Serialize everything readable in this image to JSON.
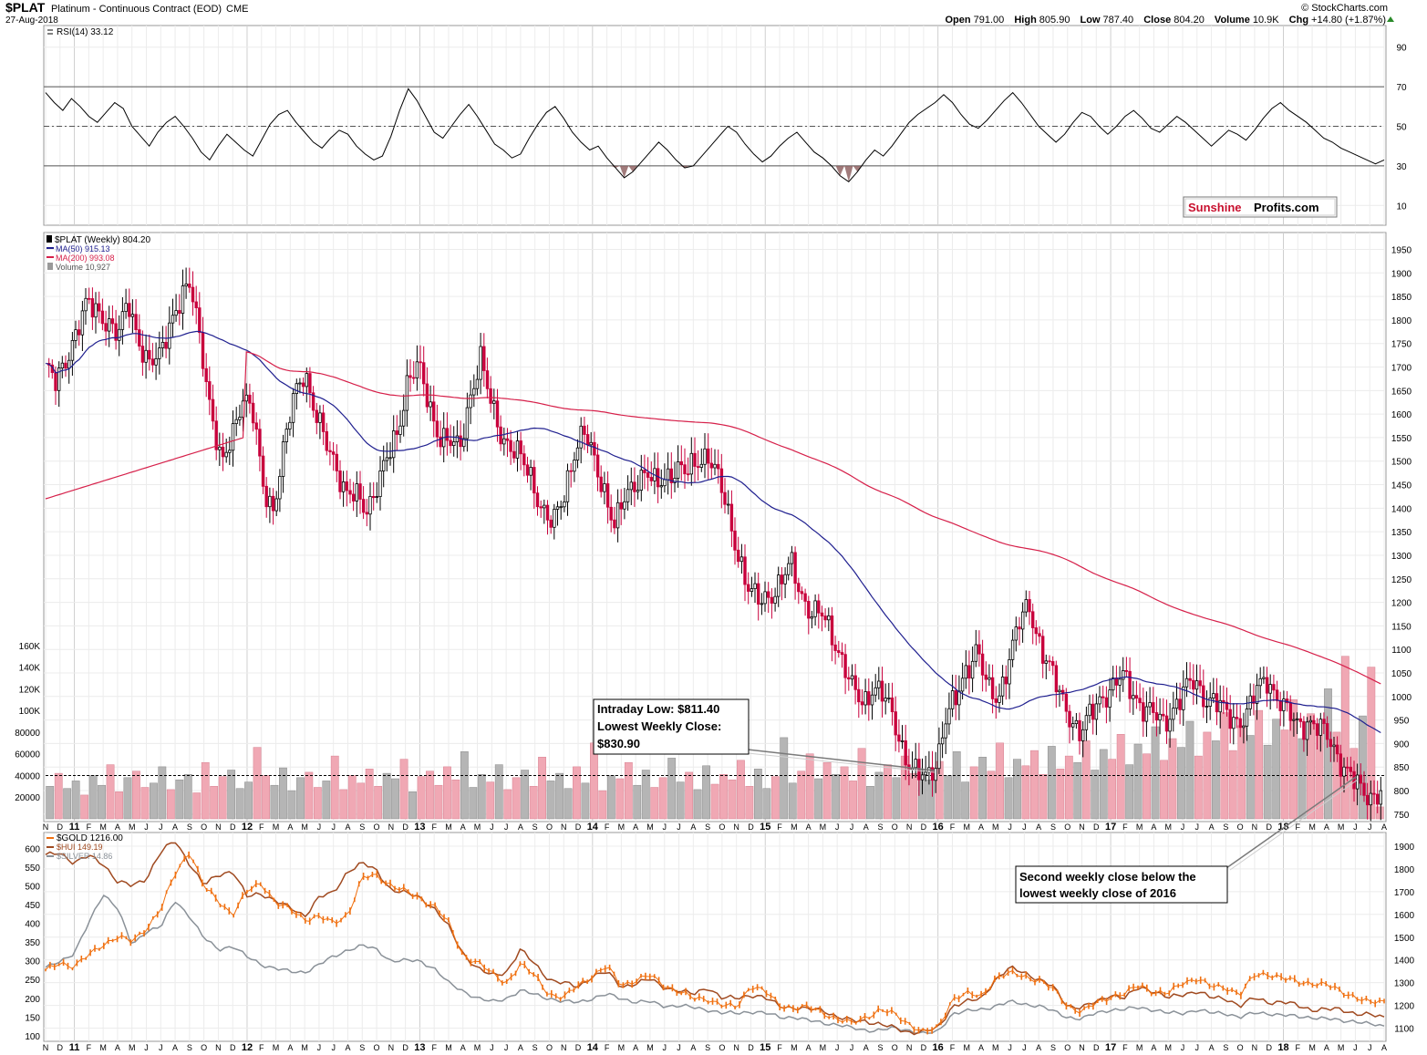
{
  "header": {
    "symbol": "$PLAT",
    "name": "Platinum - Continuous Contract (EOD)",
    "exchange": "CME",
    "date": "27-Aug-2018",
    "open_label": "Open",
    "open": "791.00",
    "high_label": "High",
    "high": "805.90",
    "low_label": "Low",
    "low": "787.40",
    "close_label": "Close",
    "close": "804.20",
    "volume_label": "Volume",
    "volume": "10.9K",
    "chg_label": "Chg",
    "chg": "+14.80 (+1.87%)",
    "credit": "© StockCharts.com"
  },
  "logo": {
    "part1": "Sunshine",
    "part2": "Profits.com",
    "color1": "#c8102e"
  },
  "colors": {
    "ma50": "#1f1f8f",
    "ma200": "#d6204a",
    "up": "#000000",
    "down": "#c8003c",
    "vol_up": "#b5b5b5",
    "vol_down": "#f0a8b4",
    "gold": "#f07010",
    "hui": "#a04a20",
    "silver": "#8a9198"
  },
  "chart_data": [
    {
      "panel": "rsi",
      "type": "line",
      "label": "RSI(14) 33.12",
      "y_ticks": [
        90,
        70,
        50,
        30,
        10
      ],
      "ylim": [
        0,
        100
      ],
      "reference_lines": [
        70,
        50,
        30
      ],
      "values": [
        67,
        62,
        58,
        64,
        60,
        55,
        52,
        57,
        62,
        59,
        50,
        45,
        40,
        47,
        52,
        55,
        50,
        44,
        37,
        33,
        40,
        46,
        42,
        38,
        35,
        43,
        51,
        56,
        58,
        52,
        47,
        42,
        39,
        44,
        48,
        46,
        40,
        36,
        33,
        35,
        45,
        58,
        69,
        63,
        55,
        47,
        44,
        50,
        56,
        61,
        55,
        48,
        41,
        38,
        34,
        36,
        44,
        51,
        57,
        60,
        54,
        47,
        42,
        38,
        40,
        34,
        29,
        24,
        27,
        32,
        37,
        42,
        38,
        33,
        29,
        30,
        35,
        40,
        45,
        50,
        47,
        41,
        36,
        32,
        35,
        40,
        44,
        47,
        42,
        37,
        34,
        30,
        25,
        22,
        27,
        33,
        38,
        35,
        40,
        46,
        52,
        56,
        59,
        62,
        66,
        62,
        56,
        51,
        49,
        53,
        58,
        63,
        67,
        62,
        56,
        50,
        46,
        42,
        46,
        52,
        57,
        55,
        50,
        46,
        50,
        55,
        58,
        54,
        49,
        47,
        51,
        55,
        52,
        48,
        44,
        40,
        44,
        48,
        46,
        43,
        48,
        54,
        59,
        62,
        58,
        55,
        52,
        48,
        44,
        42,
        39,
        37,
        35,
        33,
        31,
        33
      ]
    },
    {
      "panel": "price",
      "type": "candlestick",
      "label": "$PLAT (Weekly) 804.20",
      "legend": [
        {
          "name": "MA(50) 915.13",
          "color": "#1f1f8f"
        },
        {
          "name": "MA(200) 993.08",
          "color": "#d6204a"
        },
        {
          "name": "Volume 10,927",
          "color": "#9a9a9a"
        }
      ],
      "y_ticks": [
        1950,
        1900,
        1850,
        1800,
        1750,
        1700,
        1650,
        1600,
        1550,
        1500,
        1450,
        1400,
        1350,
        1300,
        1250,
        1200,
        1150,
        1100,
        1050,
        1000,
        950,
        900,
        850,
        800,
        750
      ],
      "ylim": [
        740,
        1980
      ],
      "x_labels": [
        "N",
        "D",
        "11",
        "F",
        "M",
        "A",
        "M",
        "J",
        "J",
        "A",
        "S",
        "O",
        "N",
        "D",
        "12",
        "F",
        "M",
        "A",
        "M",
        "J",
        "J",
        "A",
        "S",
        "O",
        "N",
        "D",
        "13",
        "F",
        "M",
        "A",
        "M",
        "J",
        "J",
        "A",
        "S",
        "O",
        "N",
        "D",
        "14",
        "F",
        "M",
        "A",
        "M",
        "J",
        "J",
        "A",
        "S",
        "O",
        "N",
        "D",
        "15",
        "F",
        "M",
        "A",
        "M",
        "J",
        "J",
        "A",
        "S",
        "O",
        "N",
        "D",
        "16",
        "F",
        "M",
        "A",
        "M",
        "J",
        "J",
        "A",
        "S",
        "O",
        "N",
        "D",
        "17",
        "F",
        "M",
        "A",
        "M",
        "J",
        "J",
        "A",
        "S",
        "O",
        "N",
        "D",
        "18",
        "F",
        "M",
        "A",
        "M",
        "J",
        "J",
        "A"
      ],
      "close_path": [
        1700,
        1660,
        1720,
        1780,
        1830,
        1820,
        1800,
        1760,
        1840,
        1760,
        1700,
        1720,
        1800,
        1840,
        1870,
        1760,
        1600,
        1480,
        1560,
        1640,
        1600,
        1450,
        1400,
        1520,
        1640,
        1700,
        1600,
        1540,
        1500,
        1430,
        1420,
        1400,
        1450,
        1500,
        1560,
        1680,
        1700,
        1620,
        1560,
        1540,
        1520,
        1640,
        1720,
        1620,
        1560,
        1530,
        1500,
        1460,
        1400,
        1360,
        1420,
        1520,
        1560,
        1500,
        1440,
        1360,
        1420,
        1460,
        1480,
        1440,
        1470,
        1490,
        1470,
        1500,
        1520,
        1460,
        1380,
        1300,
        1220,
        1200,
        1220,
        1240,
        1280,
        1220,
        1180,
        1170,
        1130,
        1080,
        1010,
        980,
        1030,
        1000,
        940,
        880,
        840,
        820,
        860,
        960,
        990,
        1060,
        1110,
        1010,
        990,
        1080,
        1150,
        1190,
        1120,
        1060,
        1000,
        960,
        920,
        960,
        1000,
        1020,
        1040,
        1010,
        980,
        960,
        940,
        980,
        1010,
        1030,
        1000,
        990,
        960,
        950,
        960,
        1010,
        1040,
        1000,
        960,
        940,
        950,
        930,
        910,
        870,
        830,
        800,
        790,
        800
      ]
    },
    {
      "panel": "volume",
      "type": "bar",
      "y_ticks": [
        "160K",
        "140K",
        "120K",
        "100K",
        "80000",
        "60000",
        "40000",
        "20000"
      ],
      "y_tick_values": [
        160000,
        140000,
        120000,
        100000,
        80000,
        60000,
        40000,
        20000
      ],
      "ylim": [
        0,
        175000
      ],
      "reference_value": 40000,
      "values_k": [
        30,
        42,
        28,
        35,
        22,
        40,
        31,
        50,
        25,
        38,
        44,
        29,
        33,
        48,
        27,
        36,
        41,
        24,
        52,
        30,
        39,
        45,
        28,
        34,
        66,
        40,
        31,
        47,
        26,
        38,
        43,
        29,
        35,
        58,
        27,
        40,
        33,
        46,
        30,
        42,
        37,
        55,
        25,
        39,
        44,
        31,
        48,
        36,
        62,
        29,
        41,
        34,
        50,
        27,
        38,
        45,
        30,
        57,
        35,
        42,
        28,
        48,
        33,
        70,
        26,
        40,
        37,
        52,
        31,
        45,
        29,
        38,
        56,
        34,
        43,
        27,
        49,
        32,
        41,
        36,
        54,
        30,
        46,
        28,
        39,
        75,
        33,
        44,
        60,
        37,
        52,
        41,
        48,
        35,
        65,
        30,
        43,
        50,
        38,
        58,
        42,
        46,
        36,
        53,
        40,
        62,
        34,
        48,
        57,
        44,
        70,
        38,
        55,
        49,
        63,
        41,
        67,
        46,
        58,
        52,
        72,
        45,
        64,
        55,
        78,
        50,
        69,
        60,
        85,
        54,
        74,
        66,
        90,
        58,
        80,
        72,
        98,
        63,
        86,
        77,
        100,
        68,
        92,
        82,
        110,
        74,
        97,
        88,
        120,
        80,
        150,
        65,
        95,
        140,
        11
      ]
    },
    {
      "panel": "comparison",
      "type": "line",
      "series": [
        {
          "name": "$GOLD 1216.00",
          "color": "#f07010",
          "values": [
            1350,
            1390,
            1370,
            1420,
            1470,
            1500,
            1480,
            1540,
            1620,
            1780,
            1880,
            1720,
            1660,
            1600,
            1700,
            1740,
            1650,
            1620,
            1580,
            1590,
            1560,
            1600,
            1760,
            1770,
            1730,
            1700,
            1670,
            1640,
            1560,
            1420,
            1390,
            1340,
            1300,
            1380,
            1330,
            1250,
            1230,
            1290,
            1330,
            1370,
            1290,
            1310,
            1330,
            1290,
            1260,
            1230,
            1230,
            1200,
            1190,
            1290,
            1260,
            1200,
            1190,
            1190,
            1170,
            1140,
            1120,
            1150,
            1180,
            1160,
            1120,
            1080,
            1100,
            1230,
            1250,
            1240,
            1320,
            1340,
            1330,
            1310,
            1270,
            1200,
            1170,
            1210,
            1240,
            1250,
            1290,
            1260,
            1250,
            1300,
            1320,
            1280,
            1280,
            1250,
            1330,
            1340,
            1320,
            1300,
            1300,
            1290,
            1260,
            1240,
            1210,
            1216
          ]
        },
        {
          "name": "$HUI 149.19",
          "color": "#a04a20",
          "values": [
            580,
            590,
            560,
            580,
            560,
            510,
            500,
            520,
            590,
            620,
            560,
            500,
            530,
            540,
            470,
            480,
            460,
            440,
            420,
            470,
            480,
            540,
            560,
            540,
            490,
            480,
            470,
            440,
            390,
            320,
            280,
            260,
            270,
            330,
            290,
            250,
            240,
            230,
            260,
            270,
            230,
            240,
            250,
            230,
            220,
            210,
            230,
            200,
            200,
            210,
            200,
            180,
            175,
            170,
            170,
            150,
            140,
            140,
            130,
            120,
            110,
            110,
            120,
            180,
            190,
            200,
            250,
            280,
            270,
            250,
            230,
            180,
            175,
            190,
            210,
            200,
            230,
            220,
            200,
            210,
            220,
            200,
            200,
            180,
            200,
            190,
            190,
            180,
            170,
            170,
            170,
            160,
            155,
            149
          ]
        },
        {
          "name": "$SILVER 14.86",
          "color": "#8a9198",
          "values": [
            280,
            300,
            320,
            400,
            480,
            440,
            340,
            380,
            390,
            460,
            420,
            360,
            330,
            340,
            310,
            290,
            280,
            270,
            270,
            290,
            310,
            330,
            340,
            330,
            300,
            300,
            300,
            280,
            240,
            220,
            200,
            190,
            200,
            220,
            210,
            200,
            190,
            190,
            200,
            210,
            200,
            190,
            190,
            180,
            180,
            175,
            170,
            160,
            160,
            165,
            160,
            150,
            150,
            140,
            135,
            130,
            120,
            115,
            115,
            120,
            115,
            105,
            110,
            160,
            165,
            170,
            180,
            190,
            185,
            180,
            165,
            150,
            145,
            160,
            170,
            170,
            175,
            170,
            160,
            160,
            170,
            160,
            160,
            150,
            160,
            160,
            155,
            150,
            150,
            145,
            140,
            140,
            130,
            125
          ]
        }
      ],
      "left_ticks": [
        600,
        550,
        500,
        450,
        400,
        350,
        300,
        250,
        200,
        150,
        100
      ],
      "left_lim": [
        90,
        630
      ],
      "right_ticks": [
        1900,
        1800,
        1700,
        1600,
        1500,
        1400,
        1300,
        1200,
        1100
      ],
      "right_lim": [
        1050,
        1940
      ]
    }
  ],
  "annotations": [
    {
      "lines": [
        "Intraday Low: $811.40",
        "Lowest Weekly Close:",
        "$830.90"
      ]
    },
    {
      "lines": [
        "Second weekly close below the",
        "lowest weekly close of 2016"
      ]
    }
  ]
}
